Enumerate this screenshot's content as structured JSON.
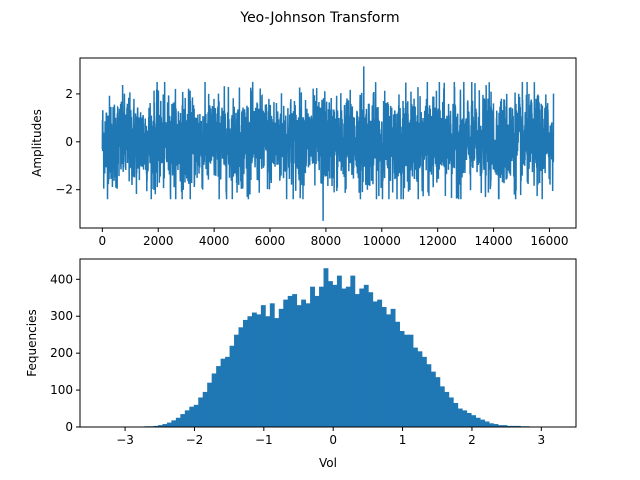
{
  "figure": {
    "suptitle": "Yeo-Johnson Transform"
  },
  "chart_data": [
    {
      "type": "line",
      "title": "",
      "xlabel": "",
      "ylabel": "Amplitudes",
      "n_points": 16150,
      "xlim": [
        -800,
        16950
      ],
      "ylim": [
        -3.6,
        3.5
      ],
      "xticks": [
        0,
        2000,
        4000,
        6000,
        8000,
        10000,
        12000,
        14000,
        16000
      ],
      "xtick_labels": [
        "0",
        "2000",
        "4000",
        "6000",
        "8000",
        "10000",
        "12000",
        "14000",
        "16000"
      ],
      "yticks": [
        2,
        0,
        -2
      ],
      "ytick_labels": [
        "2",
        "0",
        "−2"
      ],
      "typical_range": [
        -2.4,
        2.5
      ],
      "max_value": 3.15,
      "min_value": -3.3,
      "min_value_x": 7900,
      "color": "#1f77b4",
      "grid": false
    },
    {
      "type": "bar",
      "title": "",
      "xlabel": "Vol",
      "ylabel": "Fequencies",
      "xlim": [
        -3.65,
        3.5
      ],
      "ylim": [
        0,
        455
      ],
      "xticks": [
        -3,
        -2,
        -1,
        0,
        1,
        2,
        3
      ],
      "xtick_labels": [
        "−3",
        "−2",
        "−1",
        "0",
        "1",
        "2",
        "3"
      ],
      "yticks": [
        0,
        100,
        200,
        300,
        400
      ],
      "ytick_labels": [
        "0",
        "100",
        "200",
        "300",
        "400"
      ],
      "bin_start": -3.3,
      "bin_width": 0.0645,
      "counts": [
        1,
        0,
        0,
        0,
        0,
        0,
        0,
        0,
        1,
        2,
        2,
        3,
        5,
        8,
        12,
        18,
        25,
        35,
        45,
        55,
        60,
        80,
        95,
        120,
        145,
        165,
        185,
        190,
        220,
        250,
        270,
        290,
        300,
        310,
        305,
        330,
        300,
        335,
        295,
        320,
        345,
        355,
        360,
        330,
        345,
        335,
        380,
        355,
        380,
        430,
        395,
        385,
        410,
        375,
        380,
        410,
        360,
        375,
        385,
        365,
        340,
        345,
        325,
        305,
        320,
        285,
        260,
        250,
        250,
        215,
        205,
        190,
        170,
        150,
        135,
        110,
        95,
        80,
        65,
        50,
        45,
        38,
        32,
        25,
        20,
        15,
        10,
        8,
        5,
        5,
        3,
        3,
        3,
        2,
        2,
        1,
        1,
        1,
        1,
        1
      ],
      "color": "#1f77b4",
      "grid": false
    }
  ]
}
